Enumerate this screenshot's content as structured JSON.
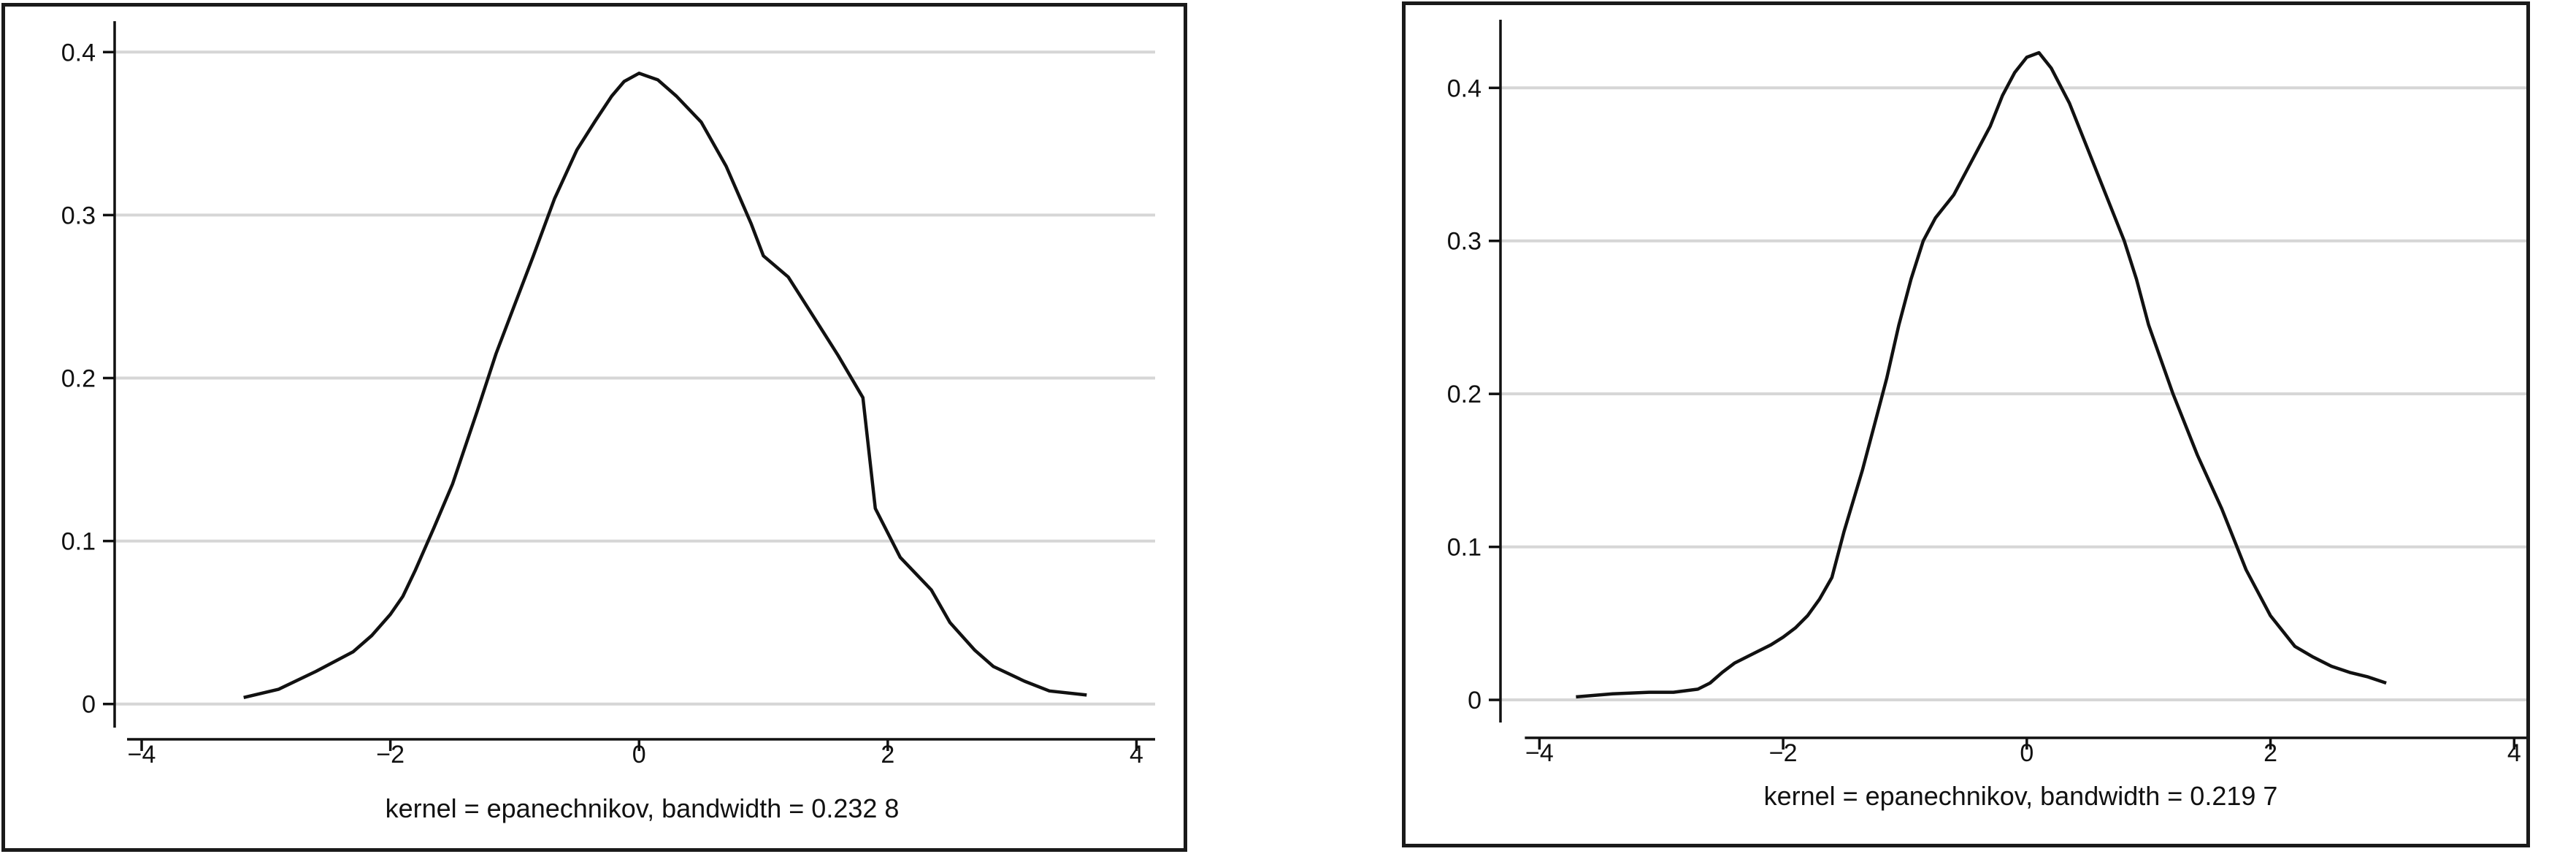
{
  "chart_data": [
    {
      "type": "line",
      "title": "",
      "xlabel": "kernel = epanechnikov, bandwidth = 0.232 8",
      "ylabel": "",
      "xlim": [
        -4.1,
        4.15
      ],
      "ylim": [
        -0.01,
        0.41
      ],
      "xticks": [
        -4,
        -2,
        0,
        2,
        4
      ],
      "xtick_labels": [
        "−4",
        "−2",
        "0",
        "2",
        "4"
      ],
      "yticks": [
        0,
        0.1,
        0.2,
        0.3,
        0.4
      ],
      "ytick_labels": [
        "0",
        "0.1",
        "0.2",
        "0.3",
        "0.4"
      ],
      "grid": "horizontal",
      "series": [
        {
          "x": [
            -3.18,
            -2.9,
            -2.6,
            -2.3,
            -2.15,
            -2.0,
            -1.9,
            -1.8,
            -1.65,
            -1.5,
            -1.3,
            -1.15,
            -1.0,
            -0.85,
            -0.68,
            -0.5,
            -0.35,
            -0.22,
            -0.12,
            0.0,
            0.15,
            0.3,
            0.5,
            0.7,
            0.9,
            1.0,
            1.2,
            1.4,
            1.6,
            1.8,
            1.9,
            2.1,
            2.35,
            2.5,
            2.7,
            2.85,
            3.1,
            3.3,
            3.6
          ],
          "y": [
            0.004,
            0.009,
            0.02,
            0.032,
            0.042,
            0.055,
            0.066,
            0.082,
            0.108,
            0.135,
            0.18,
            0.215,
            0.245,
            0.275,
            0.31,
            0.34,
            0.358,
            0.373,
            0.382,
            0.387,
            0.383,
            0.373,
            0.357,
            0.33,
            0.295,
            0.275,
            0.262,
            0.238,
            0.214,
            0.188,
            0.12,
            0.09,
            0.07,
            0.05,
            0.033,
            0.023,
            0.014,
            0.008,
            0.0055
          ],
          "color": "#111111"
        }
      ]
    },
    {
      "type": "line",
      "title": "",
      "xlabel": "kernel = epanechnikov, bandwidth = 0.219 7",
      "ylabel": "",
      "xlim": [
        -4.2,
        4.1
      ],
      "ylim": [
        -0.01,
        0.435
      ],
      "xticks": [
        -4,
        -2,
        0,
        2,
        4
      ],
      "xtick_labels": [
        "−4",
        "−2",
        "0",
        "2",
        "4"
      ],
      "yticks": [
        0,
        0.1,
        0.2,
        0.3,
        0.4
      ],
      "ytick_labels": [
        "0",
        "0.1",
        "0.2",
        "0.3",
        "0.4"
      ],
      "grid": "horizontal",
      "series": [
        {
          "x": [
            -3.7,
            -3.4,
            -3.1,
            -2.9,
            -2.8,
            -2.7,
            -2.6,
            -2.5,
            -2.4,
            -2.2,
            -2.1,
            -2.0,
            -1.9,
            -1.8,
            -1.7,
            -1.6,
            -1.5,
            -1.35,
            -1.25,
            -1.15,
            -1.05,
            -0.95,
            -0.85,
            -0.75,
            -0.6,
            -0.5,
            -0.4,
            -0.3,
            -0.2,
            -0.1,
            0.0,
            0.1,
            0.2,
            0.35,
            0.5,
            0.65,
            0.8,
            0.9,
            1.0,
            1.2,
            1.4,
            1.6,
            1.8,
            2.0,
            2.2,
            2.35,
            2.5,
            2.65,
            2.8,
            2.95
          ],
          "y": [
            0.002,
            0.004,
            0.005,
            0.005,
            0.006,
            0.007,
            0.011,
            0.018,
            0.024,
            0.032,
            0.036,
            0.041,
            0.047,
            0.055,
            0.066,
            0.08,
            0.11,
            0.15,
            0.18,
            0.21,
            0.245,
            0.275,
            0.3,
            0.315,
            0.33,
            0.345,
            0.36,
            0.375,
            0.395,
            0.41,
            0.42,
            0.423,
            0.413,
            0.39,
            0.36,
            0.33,
            0.3,
            0.275,
            0.245,
            0.2,
            0.16,
            0.125,
            0.085,
            0.055,
            0.035,
            0.028,
            0.022,
            0.018,
            0.015,
            0.011
          ],
          "color": "#111111"
        }
      ]
    }
  ]
}
